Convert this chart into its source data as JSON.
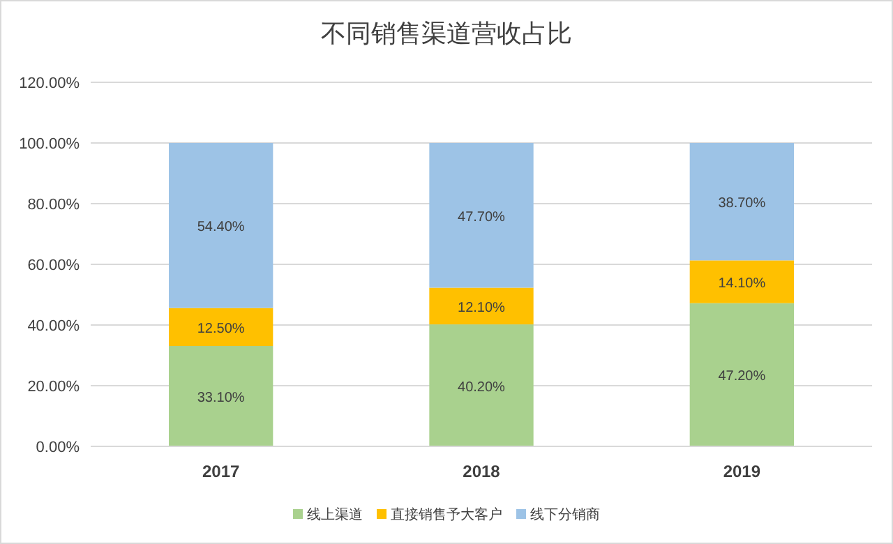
{
  "chart_data": {
    "type": "bar",
    "title": "不同销售渠道营收占比",
    "stacked": true,
    "categories": [
      "2017",
      "2018",
      "2019"
    ],
    "series": [
      {
        "name": "线上渠道",
        "color": "#a9d18e",
        "values": [
          33.1,
          40.2,
          47.2
        ],
        "value_labels": [
          "33.10%",
          "40.20%",
          "47.20%"
        ]
      },
      {
        "name": "直接销售予大客户",
        "color": "#ffc000",
        "values": [
          12.5,
          12.1,
          14.1
        ],
        "value_labels": [
          "12.50%",
          "12.10%",
          "14.10%"
        ]
      },
      {
        "name": "线下分销商",
        "color": "#9dc3e6",
        "values": [
          54.4,
          47.7,
          38.7
        ],
        "value_labels": [
          "54.40%",
          "47.70%",
          "38.70%"
        ]
      }
    ],
    "ylim": [
      0,
      120
    ],
    "yticks": [
      {
        "value": 0,
        "label": "0.00%"
      },
      {
        "value": 20,
        "label": "20.00%"
      },
      {
        "value": 40,
        "label": "40.00%"
      },
      {
        "value": 60,
        "label": "60.00%"
      },
      {
        "value": 80,
        "label": "80.00%"
      },
      {
        "value": 100,
        "label": "100.00%"
      },
      {
        "value": 120,
        "label": "120.00%"
      }
    ],
    "grid": "y",
    "legend": "bottom"
  }
}
